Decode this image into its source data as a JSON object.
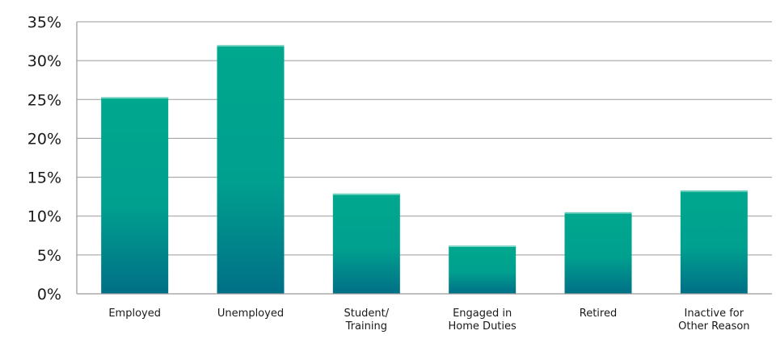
{
  "chart_data": {
    "type": "bar",
    "categories": [
      [
        "Employed"
      ],
      [
        "Unemployed"
      ],
      [
        "Student/",
        "Training"
      ],
      [
        "Engaged in",
        "Home Duties"
      ],
      [
        "Retired"
      ],
      [
        "Inactive for",
        "Other Reason"
      ]
    ],
    "values": [
      25.3,
      32.0,
      12.9,
      6.2,
      10.5,
      13.3
    ],
    "ylim": [
      0,
      35
    ],
    "yticks": [
      0,
      5,
      10,
      15,
      20,
      25,
      30,
      35
    ],
    "ytick_suffix": "%",
    "grid": true,
    "colors": {
      "bar_top": "#00a88e",
      "bar_mid": "#00a08f",
      "bar_bottom": "#006f86",
      "grid": "#9a9a9a"
    }
  }
}
